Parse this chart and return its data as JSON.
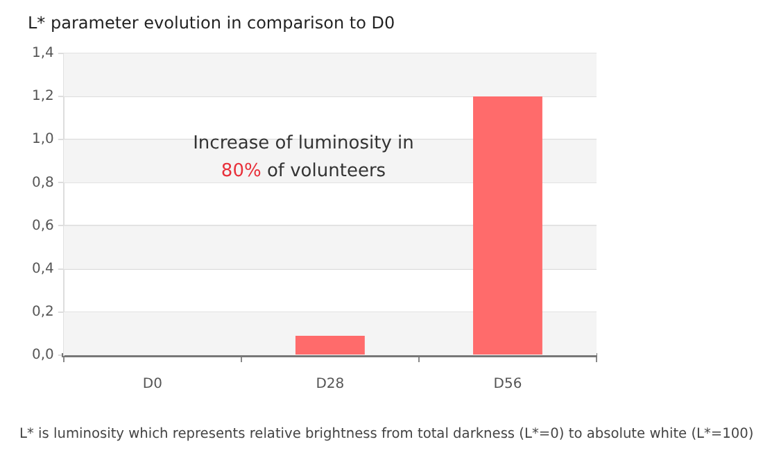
{
  "chart_data": {
    "type": "bar",
    "title": "L* parameter evolution in comparison to D0",
    "categories": [
      "D0",
      "D28",
      "D56"
    ],
    "values": [
      0,
      0.09,
      1.2
    ],
    "color": "#ff6b6b",
    "ylim": [
      0,
      1.4
    ],
    "yticks": [
      {
        "value": 0,
        "label": "0,0"
      },
      {
        "value": 0.2,
        "label": "0,2"
      },
      {
        "value": 0.4,
        "label": "0,4"
      },
      {
        "value": 0.6,
        "label": "0,6"
      },
      {
        "value": 0.8,
        "label": "0,8"
      },
      {
        "value": 1,
        "label": "1,0"
      },
      {
        "value": 1.2,
        "label": "1,2"
      },
      {
        "value": 1.4,
        "label": "1,4"
      }
    ],
    "grid": "y",
    "legend": false,
    "annotations": [
      "Increase of luminosity in 80% of volunteers",
      "L* is luminosity which represents relative brightness from total darkness (L*=0) to absolute white (L*=100)"
    ]
  }
}
